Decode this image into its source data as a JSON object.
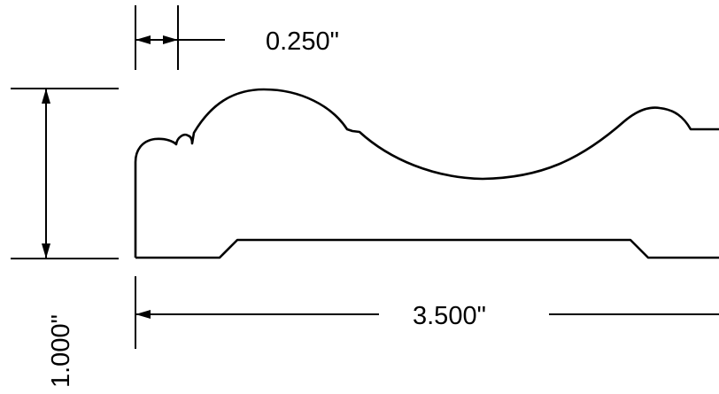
{
  "dimensions": {
    "top_offset": "0.250\"",
    "overall_width": "3.500\"",
    "overall_height": "1.000\""
  },
  "colors": {
    "lines": "#000000",
    "background": "#ffffff"
  }
}
